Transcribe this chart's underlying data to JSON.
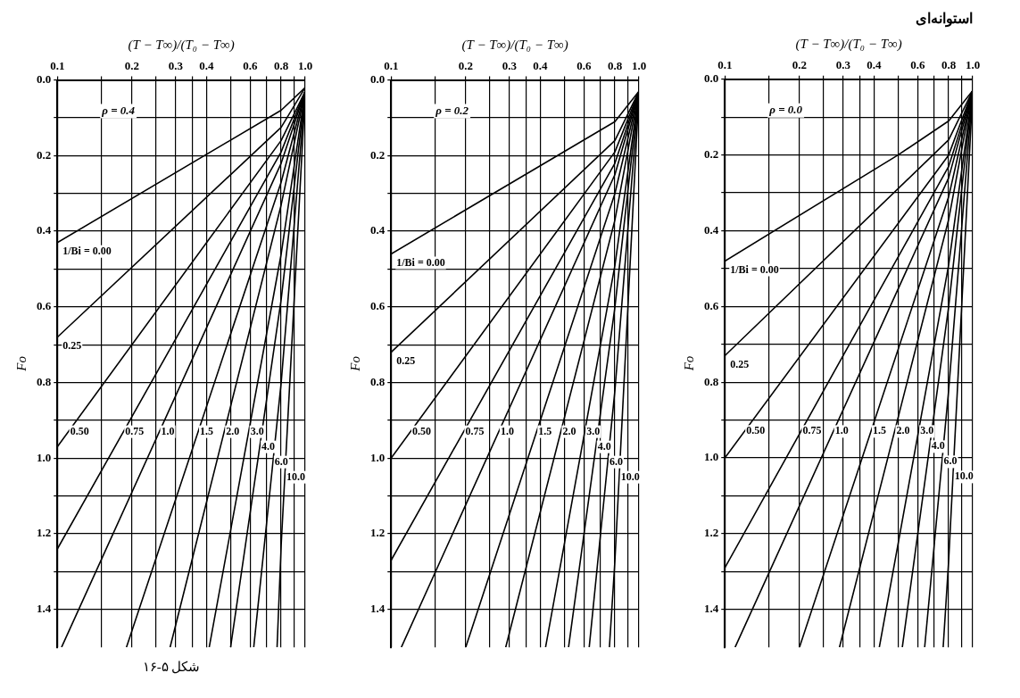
{
  "chart_data": [
    {
      "type": "line",
      "title": "استوانه‌ای",
      "xlabel": "(T − T∞)/(T₀ − T∞)",
      "ylabel": "Fo",
      "log": "x",
      "grid": true,
      "annotations": [
        "ρ = 0.0"
      ],
      "xlim": [
        0.1,
        1.0
      ],
      "xticks": [
        0.1,
        {
          "value": 0.15,
          "label": null
        },
        0.2,
        {
          "value": 0.25,
          "label": null
        },
        0.3,
        {
          "value": 0.35,
          "label": null
        },
        0.4,
        {
          "value": 0.5,
          "label": null
        },
        0.6,
        {
          "value": 0.7,
          "label": null
        },
        0.8,
        {
          "value": 0.9,
          "label": null
        },
        {
          "value": 1.0,
          "label": "1.0"
        }
      ],
      "ylim": [
        1.5,
        0
      ],
      "yticks": [
        {
          "value": 0,
          "label": "0.0"
        },
        {
          "value": 0.1,
          "label": null
        },
        0.2,
        {
          "value": 0.3,
          "label": null
        },
        0.4,
        {
          "value": 0.5,
          "label": null
        },
        0.6,
        {
          "value": 0.7,
          "label": null
        },
        0.8,
        {
          "value": 0.9,
          "label": null
        },
        {
          "value": 1.0,
          "label": "1.0"
        },
        {
          "value": 1.1,
          "label": null
        },
        1.2,
        {
          "value": 1.3,
          "label": null
        },
        1.4
      ],
      "series": [
        {
          "name": "1/Bi = 0.00",
          "color": "#000000",
          "x": [
            1.0,
            0.8,
            0.5,
            0.1
          ],
          "values": [
            0.03,
            0.11,
            0.2,
            0.48
          ]
        },
        {
          "name": "0.25",
          "color": "#000000",
          "x": [
            1.0,
            0.8,
            0.1
          ],
          "values": [
            0.03,
            0.16,
            0.73
          ]
        },
        {
          "name": "0.50",
          "color": "#000000",
          "x": [
            1.0,
            0.8,
            0.1
          ],
          "values": [
            0.03,
            0.2,
            1.0
          ]
        },
        {
          "name": "0.75",
          "color": "#000000",
          "x": [
            1.0,
            0.8,
            0.1
          ],
          "values": [
            0.03,
            0.23,
            1.29
          ]
        },
        {
          "name": "1.0",
          "color": "#000000",
          "x": [
            1.0,
            0.8,
            0.11
          ],
          "values": [
            0.03,
            0.26,
            1.5
          ]
        },
        {
          "name": "1.5",
          "color": "#000000",
          "x": [
            1.0,
            0.8,
            0.2
          ],
          "values": [
            0.03,
            0.31,
            1.5
          ]
        },
        {
          "name": "2.0",
          "color": "#000000",
          "x": [
            1.0,
            0.8,
            0.29
          ],
          "values": [
            0.03,
            0.37,
            1.5
          ]
        },
        {
          "name": "3.0",
          "color": "#000000",
          "x": [
            1.0,
            0.8,
            0.42
          ],
          "values": [
            0.03,
            0.49,
            1.5
          ]
        },
        {
          "name": "4.0",
          "color": "#000000",
          "x": [
            1.0,
            0.8,
            0.52
          ],
          "values": [
            0.03,
            0.6,
            1.5
          ]
        },
        {
          "name": "6.0",
          "color": "#000000",
          "x": [
            1.0,
            0.8,
            0.64
          ],
          "values": [
            0.03,
            0.82,
            1.5
          ]
        },
        {
          "name": "10.0",
          "color": "#000000",
          "x": [
            1.0,
            0.8,
            0.76
          ],
          "values": [
            0.03,
            1.27,
            1.5
          ]
        }
      ]
    },
    {
      "type": "line",
      "xlabel": "(T − T∞)/(T₀ − T∞)",
      "ylabel": "Fo",
      "log": "x",
      "grid": true,
      "annotations": [
        "ρ = 0.2"
      ],
      "xlim": [
        0.1,
        1.0
      ],
      "xticks": [
        0.1,
        {
          "value": 0.15,
          "label": null
        },
        0.2,
        {
          "value": 0.25,
          "label": null
        },
        0.3,
        {
          "value": 0.35,
          "label": null
        },
        0.4,
        {
          "value": 0.5,
          "label": null
        },
        0.6,
        {
          "value": 0.7,
          "label": null
        },
        0.8,
        {
          "value": 0.9,
          "label": null
        },
        {
          "value": 1.0,
          "label": "1.0"
        }
      ],
      "ylim": [
        1.5,
        0
      ],
      "yticks": [
        {
          "value": 0,
          "label": "0.0"
        },
        {
          "value": 0.1,
          "label": null
        },
        0.2,
        {
          "value": 0.3,
          "label": null
        },
        0.4,
        {
          "value": 0.5,
          "label": null
        },
        0.6,
        {
          "value": 0.7,
          "label": null
        },
        0.8,
        {
          "value": 0.9,
          "label": null
        },
        {
          "value": 1.0,
          "label": "1.0"
        },
        {
          "value": 1.1,
          "label": null
        },
        1.2,
        {
          "value": 1.3,
          "label": null
        },
        1.4
      ],
      "series": [
        {
          "name": "1/Bi = 0.00",
          "color": "#000000",
          "x": [
            1.0,
            0.8,
            0.1
          ],
          "values": [
            0.03,
            0.11,
            0.46
          ]
        },
        {
          "name": "0.25",
          "color": "#000000",
          "x": [
            1.0,
            0.8,
            0.1
          ],
          "values": [
            0.03,
            0.16,
            0.72
          ]
        },
        {
          "name": "0.50",
          "color": "#000000",
          "x": [
            1.0,
            0.8,
            0.1
          ],
          "values": [
            0.03,
            0.19,
            1.0
          ]
        },
        {
          "name": "0.75",
          "color": "#000000",
          "x": [
            1.0,
            0.8,
            0.1
          ],
          "values": [
            0.03,
            0.22,
            1.27
          ]
        },
        {
          "name": "1.0",
          "color": "#000000",
          "x": [
            1.0,
            0.8,
            0.11
          ],
          "values": [
            0.03,
            0.25,
            1.5
          ]
        },
        {
          "name": "1.5",
          "color": "#000000",
          "x": [
            1.0,
            0.8,
            0.2
          ],
          "values": [
            0.03,
            0.3,
            1.5
          ]
        },
        {
          "name": "2.0",
          "color": "#000000",
          "x": [
            1.0,
            0.8,
            0.29
          ],
          "values": [
            0.03,
            0.37,
            1.5
          ]
        },
        {
          "name": "3.0",
          "color": "#000000",
          "x": [
            1.0,
            0.8,
            0.42
          ],
          "values": [
            0.03,
            0.49,
            1.5
          ]
        },
        {
          "name": "4.0",
          "color": "#000000",
          "x": [
            1.0,
            0.8,
            0.52
          ],
          "values": [
            0.03,
            0.6,
            1.5
          ]
        },
        {
          "name": "6.0",
          "color": "#000000",
          "x": [
            1.0,
            0.8,
            0.63
          ],
          "values": [
            0.03,
            0.82,
            1.5
          ]
        },
        {
          "name": "10.0",
          "color": "#000000",
          "x": [
            1.0,
            0.8,
            0.76
          ],
          "values": [
            0.03,
            1.27,
            1.5
          ]
        }
      ]
    },
    {
      "type": "line",
      "xlabel": "(T − T∞)/(T₀ − T∞)",
      "ylabel": "Fo",
      "log": "x",
      "grid": true,
      "annotations": [
        "ρ = 0.4",
        "شکل ۵-۱۶"
      ],
      "xlim": [
        0.1,
        1.0
      ],
      "xticks": [
        0.1,
        {
          "value": 0.15,
          "label": null
        },
        0.2,
        {
          "value": 0.25,
          "label": null
        },
        0.3,
        {
          "value": 0.35,
          "label": null
        },
        0.4,
        {
          "value": 0.5,
          "label": null
        },
        0.6,
        {
          "value": 0.7,
          "label": null
        },
        0.8,
        {
          "value": 0.9,
          "label": null
        },
        {
          "value": 1.0,
          "label": "1.0"
        }
      ],
      "ylim": [
        1.5,
        0
      ],
      "yticks": [
        {
          "value": 0,
          "label": "0.0"
        },
        {
          "value": 0.1,
          "label": null
        },
        0.2,
        {
          "value": 0.3,
          "label": null
        },
        0.4,
        {
          "value": 0.5,
          "label": null
        },
        0.6,
        {
          "value": 0.7,
          "label": null
        },
        0.8,
        {
          "value": 0.9,
          "label": null
        },
        {
          "value": 1.0,
          "label": "1.0"
        },
        {
          "value": 1.1,
          "label": null
        },
        1.2,
        {
          "value": 1.3,
          "label": null
        },
        1.4
      ],
      "series": [
        {
          "name": "1/Bi = 0.00",
          "color": "#000000",
          "x": [
            1.0,
            0.8,
            0.1
          ],
          "values": [
            0.02,
            0.08,
            0.43
          ]
        },
        {
          "name": "0.25",
          "color": "#000000",
          "x": [
            1.0,
            0.8,
            0.1
          ],
          "values": [
            0.02,
            0.125,
            0.68
          ]
        },
        {
          "name": "0.50",
          "color": "#000000",
          "x": [
            1.0,
            0.8,
            0.1
          ],
          "values": [
            0.03,
            0.16,
            0.97
          ]
        },
        {
          "name": "0.75",
          "color": "#000000",
          "x": [
            1.0,
            0.8,
            0.1
          ],
          "values": [
            0.03,
            0.19,
            1.24
          ]
        },
        {
          "name": "1.0",
          "color": "#000000",
          "x": [
            1.0,
            0.8,
            0.104
          ],
          "values": [
            0.03,
            0.22,
            1.5
          ]
        },
        {
          "name": "1.5",
          "color": "#000000",
          "x": [
            1.0,
            0.8,
            0.19
          ],
          "values": [
            0.03,
            0.27,
            1.5
          ]
        },
        {
          "name": "2.0",
          "color": "#000000",
          "x": [
            1.0,
            0.8,
            0.285
          ],
          "values": [
            0.03,
            0.33,
            1.5
          ]
        },
        {
          "name": "3.0",
          "color": "#000000",
          "x": [
            1.0,
            0.8,
            0.41
          ],
          "values": [
            0.03,
            0.46,
            1.5
          ]
        },
        {
          "name": "4.0",
          "color": "#000000",
          "x": [
            1.0,
            0.8,
            0.5
          ],
          "values": [
            0.03,
            0.58,
            1.5
          ]
        },
        {
          "name": "6.0",
          "color": "#000000",
          "x": [
            1.0,
            0.8,
            0.62
          ],
          "values": [
            0.03,
            0.8,
            1.5
          ]
        },
        {
          "name": "10.0",
          "color": "#000000",
          "x": [
            1.0,
            0.8,
            0.77
          ],
          "values": [
            0.03,
            1.23,
            1.5
          ]
        }
      ]
    }
  ]
}
